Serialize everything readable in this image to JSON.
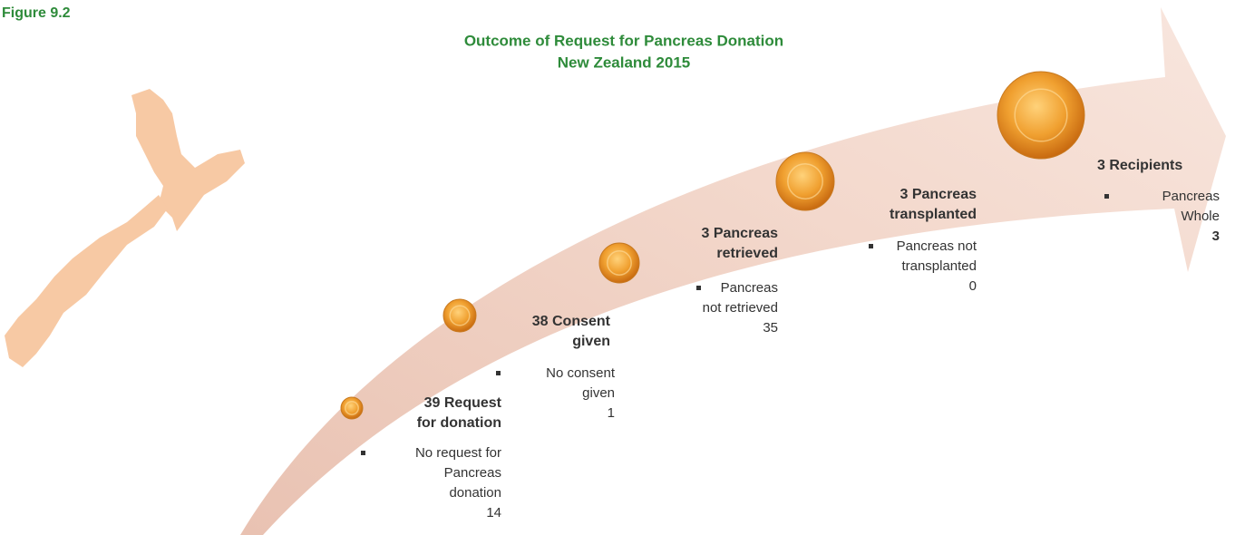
{
  "figure_label": "Figure 9.2",
  "title": [
    "Outcome of Request for Pancreas Donation",
    "New Zealand 2015"
  ],
  "stages": [
    {
      "heading": [
        "39 Request",
        "for donation"
      ],
      "detail": [
        "No request for",
        "Pancreas",
        "donation",
        "14"
      ]
    },
    {
      "heading": [
        "38 Consent",
        "given"
      ],
      "detail": [
        "No consent",
        "given",
        "1"
      ]
    },
    {
      "heading": [
        "3 Pancreas",
        "retrieved"
      ],
      "detail": [
        "Pancreas",
        "not retrieved",
        "35"
      ]
    },
    {
      "heading": [
        "3 Pancreas",
        "transplanted"
      ],
      "detail": [
        "Pancreas not",
        "transplanted",
        "0"
      ]
    },
    {
      "heading": [
        "3 Recipients"
      ],
      "detail": [
        "Pancreas",
        "Whole",
        "3"
      ]
    }
  ]
}
